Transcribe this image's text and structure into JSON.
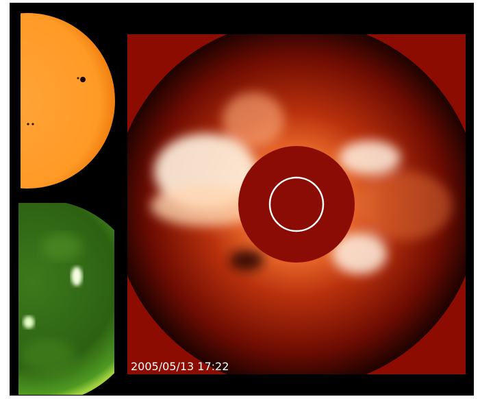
{
  "image": {
    "timestamp": "2005/05/13 17:22"
  }
}
